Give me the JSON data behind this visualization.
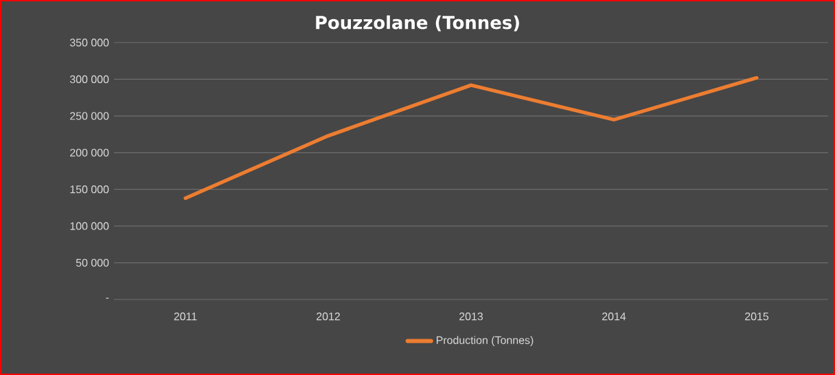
{
  "chart_data": {
    "type": "line",
    "title": "Pouzzolane (Tonnes)",
    "categories": [
      "2011",
      "2012",
      "2013",
      "2014",
      "2015"
    ],
    "series": [
      {
        "name": "Production (Tonnes)",
        "color": "#ed7d31",
        "values": [
          138000,
          223000,
          292000,
          245000,
          302000
        ]
      }
    ],
    "ylim": [
      0,
      350000
    ],
    "yticks": [
      {
        "value": 0,
        "label": "-"
      },
      {
        "value": 50000,
        "label": "50 000"
      },
      {
        "value": 100000,
        "label": "100 000"
      },
      {
        "value": 150000,
        "label": "150 000"
      },
      {
        "value": 200000,
        "label": "200 000"
      },
      {
        "value": 250000,
        "label": "250 000"
      },
      {
        "value": 300000,
        "label": "300 000"
      },
      {
        "value": 350000,
        "label": "350 000"
      }
    ],
    "grid": "y",
    "legend": "bottom",
    "marker": "none",
    "line_style": "solid"
  }
}
